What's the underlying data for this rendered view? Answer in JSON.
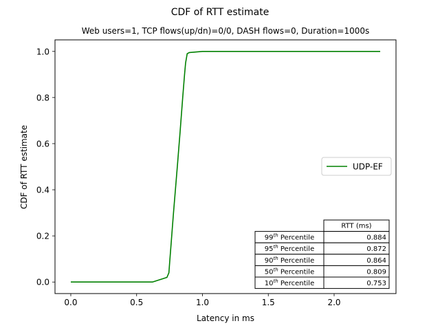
{
  "chart_data": {
    "type": "line",
    "title": "CDF of RTT estimate",
    "subtitle": "Web users=1, TCP flows(up/dn)=0/0, DASH flows=0, Duration=1000s",
    "xlabel": "Latency in ms",
    "ylabel": "CDF of RTT estimate",
    "xlim": [
      -0.12,
      2.47
    ],
    "ylim": [
      -0.05,
      1.05
    ],
    "xticks": [
      0.0,
      0.5,
      1.0,
      1.5,
      2.0
    ],
    "xtick_labels": [
      "0.0",
      "0.5",
      "1.0",
      "1.5",
      "2.0"
    ],
    "yticks": [
      0.0,
      0.2,
      0.4,
      0.6,
      0.8,
      1.0
    ],
    "ytick_labels": [
      "0.0",
      "0.2",
      "0.4",
      "0.6",
      "0.8",
      "1.0"
    ],
    "grid": false,
    "legend_position": "center-right",
    "series": [
      {
        "name": "UDP-EF",
        "color": "#008000",
        "x": [
          0.0,
          0.62,
          0.73,
          0.745,
          0.753,
          0.78,
          0.809,
          0.83,
          0.85,
          0.864,
          0.872,
          0.884,
          0.9,
          1.0,
          2.35
        ],
        "y": [
          0.0,
          0.0,
          0.02,
          0.04,
          0.1,
          0.3,
          0.5,
          0.65,
          0.8,
          0.9,
          0.95,
          0.99,
          0.995,
          1.0,
          1.0
        ]
      }
    ],
    "table": {
      "column_header": "RTT (ms)",
      "rows": [
        {
          "ordinal": "99",
          "suffix": "th",
          "label": "Percentile",
          "value": "0.884"
        },
        {
          "ordinal": "95",
          "suffix": "th",
          "label": "Percentile",
          "value": "0.872"
        },
        {
          "ordinal": "90",
          "suffix": "th",
          "label": "Percentile",
          "value": "0.864"
        },
        {
          "ordinal": "50",
          "suffix": "th",
          "label": "Percentile",
          "value": "0.809"
        },
        {
          "ordinal": "10",
          "suffix": "th",
          "label": "Percentile",
          "value": "0.753"
        }
      ]
    }
  }
}
